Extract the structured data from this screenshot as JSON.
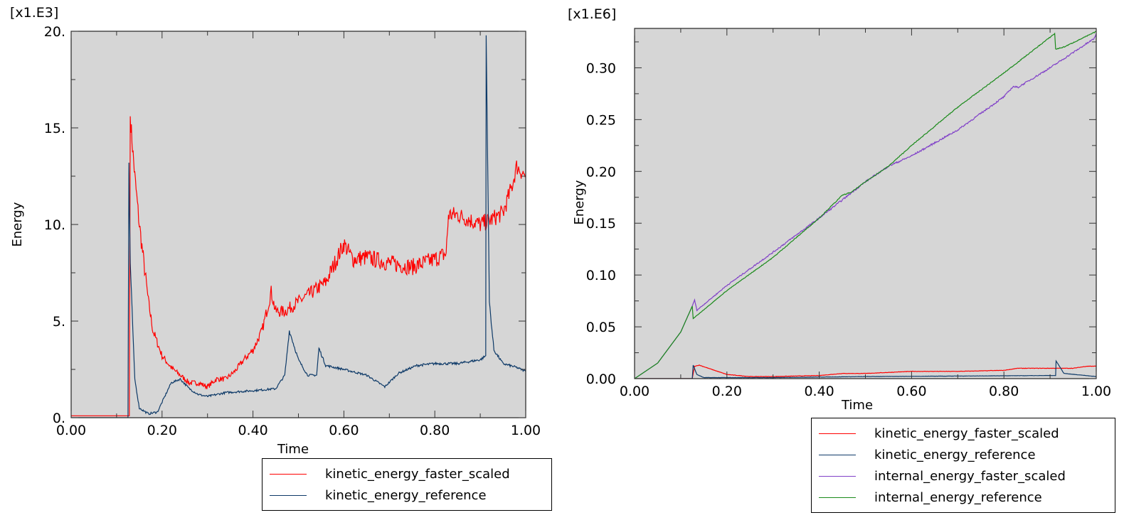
{
  "chart_data": [
    {
      "type": "line",
      "multiplier": "[x1.E3]",
      "xlabel": "Time",
      "ylabel": "Energy",
      "xlim": [
        0,
        1
      ],
      "ylim": [
        0,
        20
      ],
      "xticks": [
        "0.00",
        "0.20",
        "0.40",
        "0.60",
        "0.80",
        "1.00"
      ],
      "yticks": [
        "0.",
        "5.",
        "10.",
        "15.",
        "20."
      ],
      "grid": false,
      "background": "#d6d6d6",
      "legend_position": "bottom-right-outside",
      "series": [
        {
          "name": "kinetic_energy_faster_scaled",
          "color": "#ff0000",
          "x": [
            0,
            0.125,
            0.128,
            0.13,
            0.135,
            0.14,
            0.15,
            0.16,
            0.17,
            0.18,
            0.2,
            0.22,
            0.24,
            0.26,
            0.28,
            0.3,
            0.32,
            0.34,
            0.36,
            0.38,
            0.4,
            0.42,
            0.44,
            0.45,
            0.47,
            0.5,
            0.53,
            0.56,
            0.58,
            0.6,
            0.62,
            0.65,
            0.7,
            0.75,
            0.8,
            0.825,
            0.83,
            0.85,
            0.88,
            0.9,
            0.92,
            0.95,
            0.97,
            0.98,
            1.0
          ],
          "y": [
            0.1,
            0.1,
            0.1,
            15.6,
            14.0,
            12.5,
            10.0,
            8.0,
            6.0,
            4.5,
            3.2,
            2.6,
            2.2,
            1.8,
            1.8,
            1.6,
            2.0,
            2.0,
            2.4,
            3.0,
            3.5,
            4.5,
            6.5,
            5.5,
            5.5,
            6.0,
            6.5,
            7.0,
            8.0,
            9.0,
            8.2,
            8.3,
            8.0,
            7.8,
            8.2,
            8.5,
            10.5,
            10.5,
            10.2,
            10.0,
            10.2,
            10.6,
            12.0,
            13.0,
            12.5
          ]
        },
        {
          "name": "kinetic_energy_reference",
          "color": "#0e3a68",
          "x": [
            0,
            0.125,
            0.127,
            0.13,
            0.14,
            0.15,
            0.17,
            0.19,
            0.2,
            0.22,
            0.24,
            0.26,
            0.28,
            0.3,
            0.34,
            0.4,
            0.45,
            0.47,
            0.48,
            0.5,
            0.52,
            0.54,
            0.545,
            0.56,
            0.6,
            0.65,
            0.69,
            0.72,
            0.76,
            0.8,
            0.85,
            0.9,
            0.912,
            0.913,
            0.92,
            0.93,
            0.95,
            0.98,
            1.0
          ],
          "y": [
            0,
            0,
            13.2,
            8.0,
            2.0,
            0.5,
            0.2,
            0.3,
            0.8,
            1.8,
            2.0,
            1.5,
            1.2,
            1.1,
            1.3,
            1.4,
            1.5,
            2.2,
            4.5,
            3.0,
            2.2,
            2.2,
            3.6,
            2.7,
            2.5,
            2.2,
            1.6,
            2.3,
            2.7,
            2.8,
            2.8,
            3.0,
            3.2,
            19.8,
            6.0,
            3.5,
            2.8,
            2.6,
            2.4
          ]
        }
      ]
    },
    {
      "type": "line",
      "multiplier": "[x1.E6]",
      "xlabel": "Time",
      "ylabel": "Energy",
      "xlim": [
        0,
        1
      ],
      "ylim": [
        0,
        0.338
      ],
      "xticks": [
        "0.00",
        "0.20",
        "0.40",
        "0.60",
        "0.80",
        "1.00"
      ],
      "yticks": [
        "0.00",
        "0.05",
        "0.10",
        "0.15",
        "0.20",
        "0.25",
        "0.30"
      ],
      "grid": false,
      "background": "#d6d6d6",
      "legend_position": "bottom-right-outside",
      "series": [
        {
          "name": "kinetic_energy_faster_scaled",
          "color": "#ff0000",
          "x": [
            0,
            0.125,
            0.13,
            0.14,
            0.16,
            0.2,
            0.25,
            0.3,
            0.4,
            0.45,
            0.5,
            0.6,
            0.7,
            0.8,
            0.83,
            0.9,
            0.95,
            0.98,
            1.0
          ],
          "y": [
            0,
            0,
            0.012,
            0.013,
            0.01,
            0.004,
            0.002,
            0.002,
            0.003,
            0.005,
            0.005,
            0.007,
            0.007,
            0.008,
            0.01,
            0.01,
            0.01,
            0.012,
            0.012
          ]
        },
        {
          "name": "kinetic_energy_reference",
          "color": "#0e3a68",
          "x": [
            0,
            0.125,
            0.127,
            0.135,
            0.15,
            0.3,
            0.5,
            0.9,
            0.912,
            0.913,
            0.93,
            1.0
          ],
          "y": [
            0,
            0,
            0.013,
            0.004,
            0.001,
            0.001,
            0.002,
            0.003,
            0.003,
            0.017,
            0.005,
            0.002
          ]
        },
        {
          "name": "internal_energy_faster_scaled",
          "color": "#8040c8",
          "x": [
            0,
            0.05,
            0.1,
            0.125,
            0.13,
            0.135,
            0.2,
            0.3,
            0.4,
            0.5,
            0.55,
            0.6,
            0.7,
            0.8,
            0.82,
            0.83,
            0.9,
            0.995,
            1.0
          ],
          "y": [
            0,
            0.015,
            0.045,
            0.07,
            0.076,
            0.066,
            0.09,
            0.122,
            0.155,
            0.19,
            0.205,
            0.215,
            0.24,
            0.272,
            0.282,
            0.281,
            0.3,
            0.328,
            0.333
          ]
        },
        {
          "name": "internal_energy_reference",
          "color": "#1a8a1a",
          "x": [
            0,
            0.05,
            0.1,
            0.125,
            0.127,
            0.2,
            0.3,
            0.4,
            0.45,
            0.47,
            0.5,
            0.55,
            0.6,
            0.7,
            0.8,
            0.91,
            0.912,
            0.93,
            1.0
          ],
          "y": [
            0,
            0.015,
            0.045,
            0.07,
            0.058,
            0.085,
            0.117,
            0.155,
            0.177,
            0.18,
            0.19,
            0.205,
            0.225,
            0.262,
            0.295,
            0.333,
            0.318,
            0.32,
            0.335
          ]
        }
      ]
    }
  ]
}
